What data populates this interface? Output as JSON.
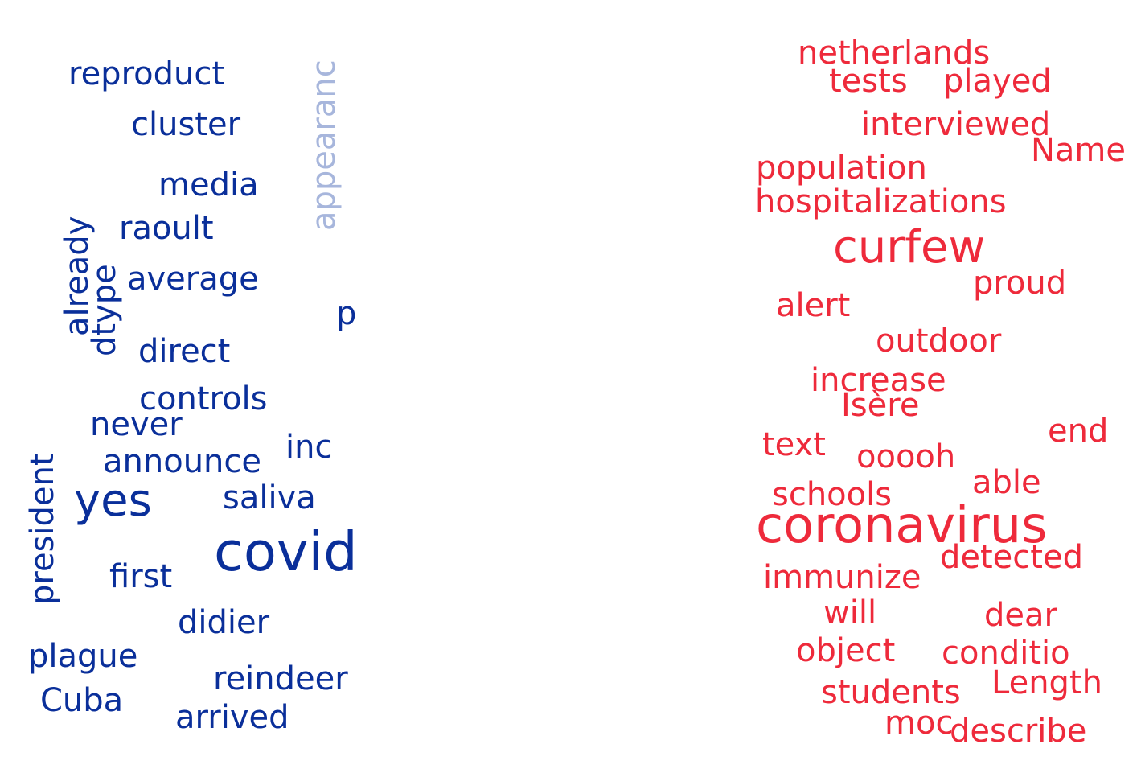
{
  "left_cloud": {
    "color": "#0a2f9a",
    "faded_color": "#a7b6dc",
    "words": [
      "reproduct",
      "cluster",
      "media",
      "raoult",
      "average",
      "already",
      "dtype",
      "appearanc",
      "p",
      "direct",
      "controls",
      "never",
      "inc",
      "announce",
      "president",
      "yes",
      "saliva",
      "covid",
      "first",
      "didier",
      "plague",
      "reindeer",
      "Cuba",
      "arrived"
    ]
  },
  "right_cloud": {
    "color": "#ee2a3b",
    "words": [
      "netherlands",
      "tests",
      "played",
      "interviewed",
      "Name",
      "population",
      "hospitalizations",
      "curfew",
      "proud",
      "alert",
      "outdoor",
      "increase",
      "Isère",
      "end",
      "text",
      "ooooh",
      "able",
      "schools",
      "coronavirus",
      "detected",
      "immunize",
      "will",
      "dear",
      "object",
      "conditio",
      "students",
      "Length",
      "moc",
      "describe"
    ]
  }
}
